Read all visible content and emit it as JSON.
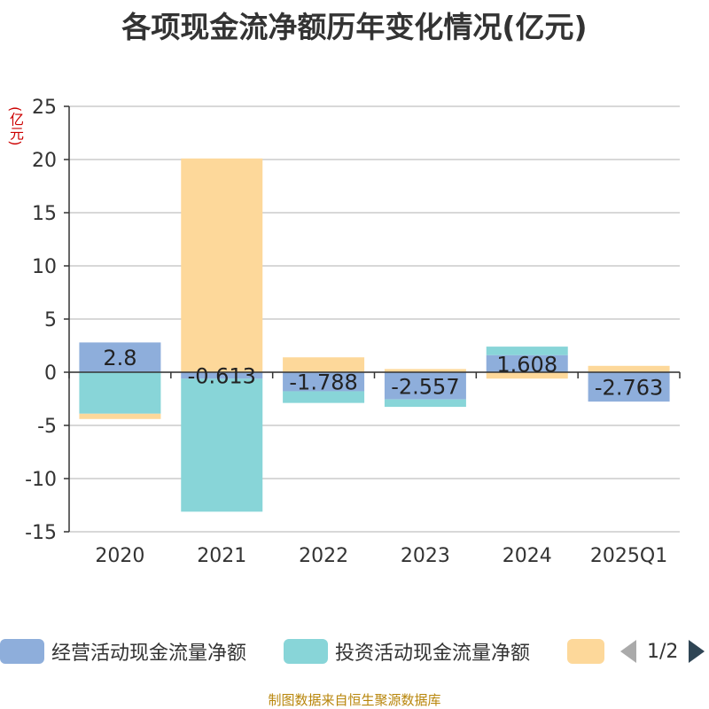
{
  "title": "各项现金流净额历年变化情况(亿元)",
  "unit": "(亿元)",
  "source": "制图数据来自恒生聚源数据库",
  "legend": {
    "items": [
      {
        "label": "经营活动现金流量净额",
        "color": "#8eaedb"
      },
      {
        "label": "投资活动现金流量净额",
        "color": "#88d5d8"
      },
      {
        "label": "",
        "color": "#fdd89a"
      }
    ],
    "page": "1/2"
  },
  "chart_data": {
    "type": "bar",
    "stacked": true,
    "categories": [
      "2020",
      "2021",
      "2022",
      "2023",
      "2024",
      "2025Q1"
    ],
    "ylim": [
      -15,
      25
    ],
    "yticks": [
      25,
      20,
      15,
      10,
      5,
      0,
      -5,
      -10,
      -15
    ],
    "grid": true,
    "legend_position": "bottom",
    "series": [
      {
        "name": "经营活动现金流量净额",
        "color": "#8eaedb",
        "values": [
          2.8,
          -0.613,
          -1.788,
          -2.557,
          1.608,
          -2.763
        ],
        "labels": [
          "2.8",
          "-0.613",
          "-1.788",
          "-2.557",
          "1.608",
          "-2.763"
        ]
      },
      {
        "name": "投资活动现金流量净额",
        "color": "#88d5d8",
        "values": [
          -3.9,
          -12.5,
          -1.1,
          -0.7,
          0.8,
          0
        ]
      },
      {
        "name": "",
        "color": "#fdd89a",
        "values": [
          -0.5,
          20.1,
          1.4,
          0.3,
          -0.6,
          0.6
        ]
      }
    ]
  }
}
